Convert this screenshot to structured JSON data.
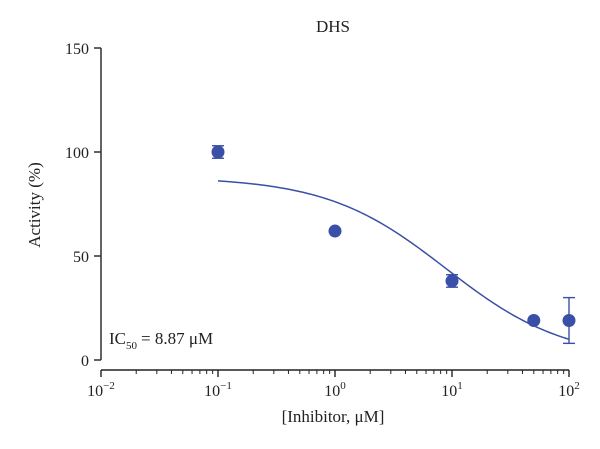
{
  "chart_data": {
    "type": "scatter",
    "title": "DHS",
    "xlabel": "[Inhibitor, μM]",
    "ylabel": "Activity (%)",
    "x_scale": "log",
    "xlim": [
      0.01,
      100
    ],
    "ylim": [
      0,
      150
    ],
    "x_ticks": [
      {
        "base": "10",
        "exp": "−2",
        "value": 0.01
      },
      {
        "base": "10",
        "exp": "−1",
        "value": 0.1
      },
      {
        "base": "10",
        "exp": "0",
        "value": 1
      },
      {
        "base": "10",
        "exp": "1",
        "value": 10
      },
      {
        "base": "10",
        "exp": "2",
        "value": 100
      }
    ],
    "y_ticks": [
      "0",
      "50",
      "100",
      "150"
    ],
    "points": [
      {
        "x": 0.1,
        "y": 100,
        "err": 3
      },
      {
        "x": 1,
        "y": 62,
        "err": 0
      },
      {
        "x": 10,
        "y": 38,
        "err": 3
      },
      {
        "x": 50,
        "y": 19,
        "err": 0
      },
      {
        "x": 100,
        "y": 19,
        "err": 11
      }
    ],
    "fit": {
      "top": 88,
      "bottom": 0,
      "ic50": 8.87,
      "hill": 0.85,
      "x_from": 0.1,
      "x_to": 100
    },
    "annotation": {
      "main": "IC",
      "sub": "50",
      "rest": "= 8.87 μM"
    },
    "grid": false,
    "colors": {
      "points": "#3a4fa8",
      "fit": "#3a4fa8",
      "axis": "#222222"
    }
  }
}
